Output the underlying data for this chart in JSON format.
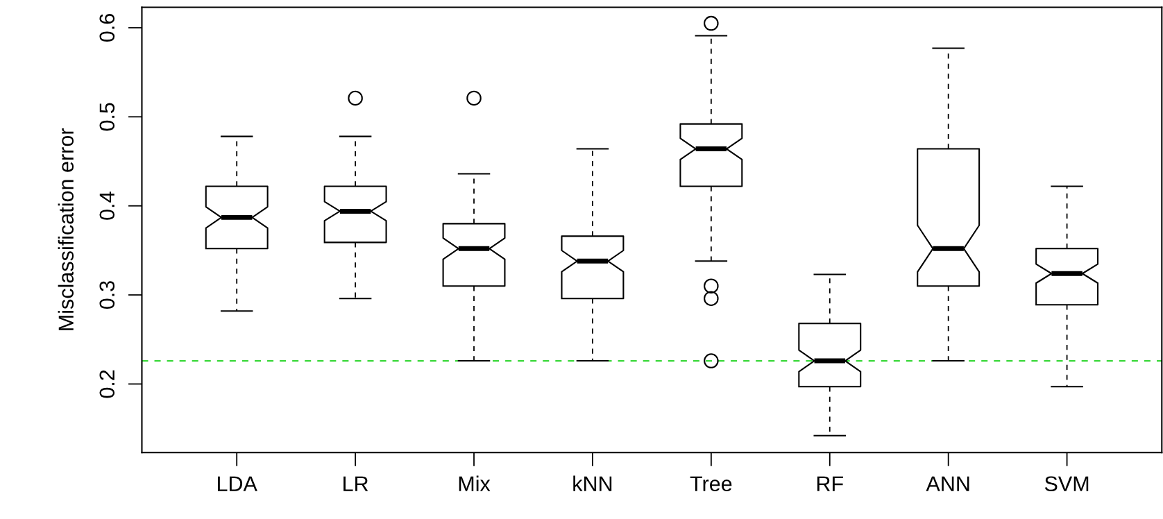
{
  "chart_data": {
    "type": "box",
    "ylabel": "Misclassification error",
    "categories": [
      "LDA",
      "LR",
      "Mix",
      "kNN",
      "Tree",
      "RF",
      "ANN",
      "SVM"
    ],
    "boxes": [
      {
        "low": 0.282,
        "q1": 0.352,
        "median": 0.387,
        "q3": 0.422,
        "high": 0.478
      },
      {
        "low": 0.296,
        "q1": 0.359,
        "median": 0.394,
        "q3": 0.422,
        "high": 0.478,
        "outliers": [
          0.521
        ]
      },
      {
        "low": 0.226,
        "q1": 0.31,
        "median": 0.352,
        "q3": 0.38,
        "high": 0.436,
        "outliers": [
          0.521
        ]
      },
      {
        "low": 0.226,
        "q1": 0.296,
        "median": 0.338,
        "q3": 0.366,
        "high": 0.464
      },
      {
        "low": 0.338,
        "q1": 0.422,
        "median": 0.464,
        "q3": 0.492,
        "high": 0.591,
        "outliers": [
          0.605,
          0.31,
          0.296,
          0.226
        ]
      },
      {
        "low": 0.142,
        "q1": 0.197,
        "median": 0.226,
        "q3": 0.268,
        "high": 0.323
      },
      {
        "low": 0.226,
        "q1": 0.31,
        "median": 0.352,
        "q3": 0.464,
        "high": 0.577
      },
      {
        "low": 0.197,
        "q1": 0.289,
        "median": 0.324,
        "q3": 0.352,
        "high": 0.422
      }
    ],
    "ylim": [
      0.123,
      0.623
    ],
    "yticks": [
      0.2,
      0.3,
      0.4,
      0.5,
      0.6
    ],
    "ref_lines": [
      {
        "axis": "y",
        "value": 0.226,
        "color": "#00cd00",
        "line_style": "dashed"
      }
    ],
    "grid": false
  }
}
